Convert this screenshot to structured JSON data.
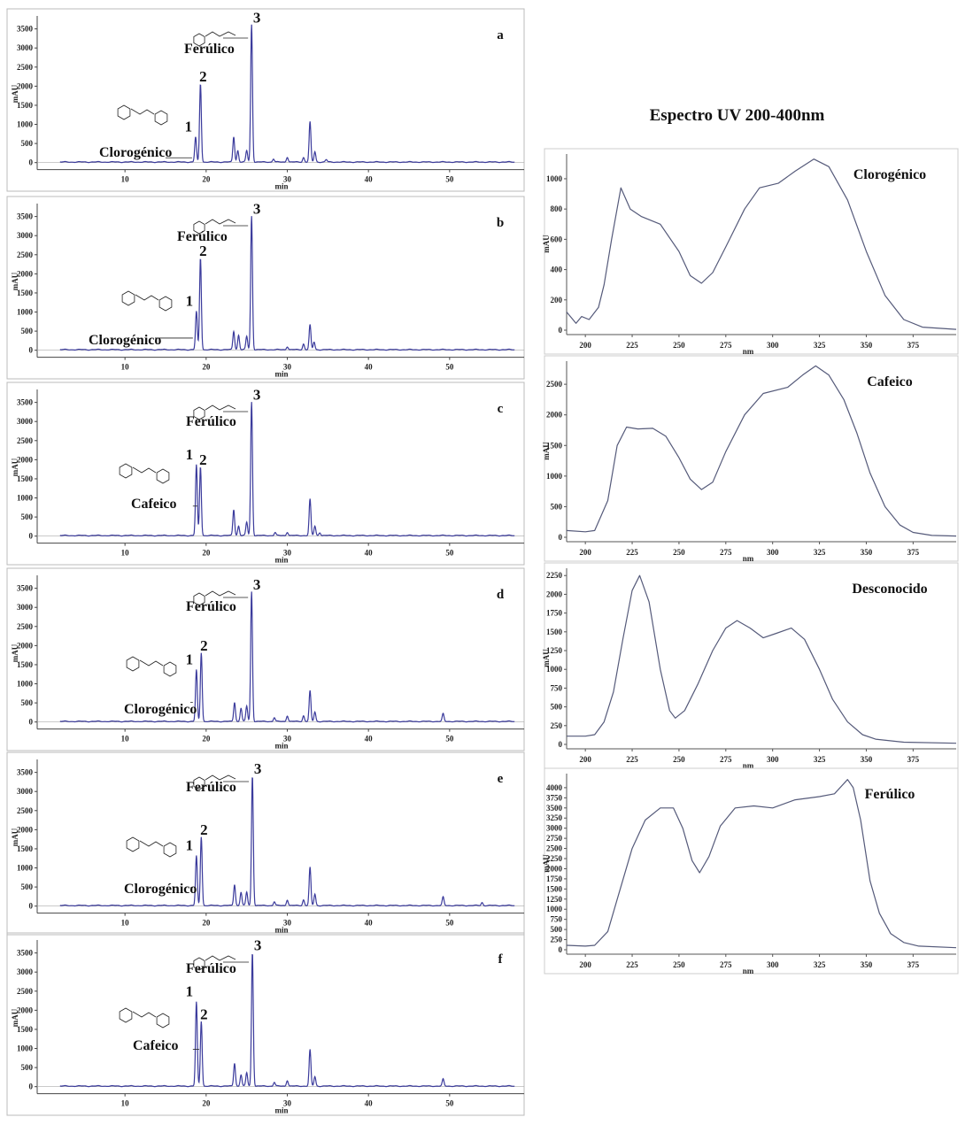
{
  "figure_title": "Espectro UV 200-400nm",
  "chart_data": [
    {
      "type": "line",
      "panel": "a",
      "xlabel": "min",
      "ylabel": "mAU",
      "xlim": [
        0,
        60
      ],
      "ylim": [
        -100,
        3700
      ],
      "x_ticks": [
        10,
        20,
        30,
        40,
        50
      ],
      "y_ticks": [
        0,
        500,
        1000,
        1500,
        2000,
        2500,
        3000,
        3500
      ],
      "line_color": "#3b3b9c",
      "annotations": {
        "compound_1": "Clorogénico",
        "compound_3": "Ferúlico",
        "peak_labels": [
          "1",
          "2",
          "3"
        ]
      },
      "peaks": [
        [
          18.7,
          650
        ],
        [
          19.3,
          2050
        ],
        [
          23.4,
          660
        ],
        [
          23.9,
          300
        ],
        [
          25.0,
          300
        ],
        [
          25.6,
          3600
        ],
        [
          28.3,
          80
        ],
        [
          30.0,
          130
        ],
        [
          32.0,
          120
        ],
        [
          32.8,
          1050
        ],
        [
          33.4,
          270
        ],
        [
          34.8,
          60
        ]
      ]
    },
    {
      "type": "line",
      "panel": "b",
      "xlabel": "min",
      "ylabel": "mAU",
      "xlim": [
        0,
        60
      ],
      "ylim": [
        -100,
        3700
      ],
      "x_ticks": [
        10,
        20,
        30,
        40,
        50
      ],
      "y_ticks": [
        0,
        500,
        1000,
        1500,
        2000,
        2500,
        3000,
        3500
      ],
      "line_color": "#3b3b9c",
      "annotations": {
        "compound_1": "Clorogénico",
        "compound_3": "Ferúlico",
        "peak_labels": [
          "1",
          "2",
          "3"
        ]
      },
      "peaks": [
        [
          18.8,
          1000
        ],
        [
          19.3,
          2400
        ],
        [
          23.4,
          480
        ],
        [
          24.0,
          380
        ],
        [
          25.0,
          350
        ],
        [
          25.6,
          3500
        ],
        [
          30.0,
          80
        ],
        [
          32.0,
          150
        ],
        [
          32.8,
          650
        ],
        [
          33.3,
          200
        ]
      ]
    },
    {
      "type": "line",
      "panel": "c",
      "xlabel": "min",
      "ylabel": "mAU",
      "xlim": [
        0,
        60
      ],
      "ylim": [
        -100,
        3700
      ],
      "x_ticks": [
        10,
        20,
        30,
        40,
        50
      ],
      "y_ticks": [
        0,
        500,
        1000,
        1500,
        2000,
        2500,
        3000,
        3500
      ],
      "line_color": "#3b3b9c",
      "annotations": {
        "compound_1": "Cafeico",
        "compound_3": "Ferúlico",
        "peak_labels": [
          "1",
          "2",
          "3"
        ]
      },
      "peaks": [
        [
          18.8,
          1850
        ],
        [
          19.3,
          1800
        ],
        [
          23.4,
          680
        ],
        [
          24.0,
          250
        ],
        [
          25.0,
          350
        ],
        [
          25.6,
          3500
        ],
        [
          28.5,
          80
        ],
        [
          30.0,
          90
        ],
        [
          32.8,
          950
        ],
        [
          33.4,
          250
        ],
        [
          34.0,
          80
        ]
      ]
    },
    {
      "type": "line",
      "panel": "d",
      "xlabel": "min",
      "ylabel": "mAU",
      "xlim": [
        0,
        60
      ],
      "ylim": [
        -100,
        3700
      ],
      "x_ticks": [
        10,
        20,
        30,
        40,
        50
      ],
      "y_ticks": [
        0,
        500,
        1000,
        1500,
        2000,
        2500,
        3000,
        3500
      ],
      "line_color": "#3b3b9c",
      "annotations": {
        "compound_1": "Clorogénico",
        "compound_3": "Ferúlico",
        "peak_labels": [
          "1",
          "2",
          "3"
        ]
      },
      "peaks": [
        [
          18.8,
          1350
        ],
        [
          19.4,
          1800
        ],
        [
          23.5,
          500
        ],
        [
          24.3,
          350
        ],
        [
          25.0,
          400
        ],
        [
          25.6,
          3400
        ],
        [
          28.4,
          100
        ],
        [
          30.0,
          150
        ],
        [
          32.0,
          150
        ],
        [
          32.8,
          800
        ],
        [
          33.4,
          250
        ],
        [
          49.2,
          200
        ]
      ]
    },
    {
      "type": "line",
      "panel": "e",
      "xlabel": "min",
      "ylabel": "mAU",
      "xlim": [
        0,
        60
      ],
      "ylim": [
        -100,
        3700
      ],
      "x_ticks": [
        10,
        20,
        30,
        40,
        50
      ],
      "y_ticks": [
        0,
        500,
        1000,
        1500,
        2000,
        2500,
        3000,
        3500
      ],
      "line_color": "#3b3b9c",
      "annotations": {
        "compound_1": "Clorogénico",
        "compound_3": "Ferúlico",
        "peak_labels": [
          "1",
          "2",
          "3"
        ]
      },
      "peaks": [
        [
          18.8,
          1300
        ],
        [
          19.4,
          1800
        ],
        [
          23.5,
          550
        ],
        [
          24.3,
          350
        ],
        [
          25.0,
          350
        ],
        [
          25.7,
          3400
        ],
        [
          28.4,
          100
        ],
        [
          30.0,
          150
        ],
        [
          32.0,
          150
        ],
        [
          32.8,
          1000
        ],
        [
          33.4,
          300
        ],
        [
          49.2,
          220
        ],
        [
          54.0,
          80
        ]
      ]
    },
    {
      "type": "line",
      "panel": "f",
      "xlabel": "min",
      "ylabel": "mAU",
      "xlim": [
        0,
        60
      ],
      "ylim": [
        -100,
        3700
      ],
      "x_ticks": [
        10,
        20,
        30,
        40,
        50
      ],
      "y_ticks": [
        0,
        500,
        1000,
        1500,
        2000,
        2500,
        3000,
        3500
      ],
      "line_color": "#3b3b9c",
      "annotations": {
        "compound_1": "Cafeico",
        "compound_3": "Ferúlico",
        "peak_labels": [
          "1",
          "2",
          "3"
        ]
      },
      "peaks": [
        [
          18.8,
          2200
        ],
        [
          19.4,
          1700
        ],
        [
          23.5,
          600
        ],
        [
          24.3,
          300
        ],
        [
          25.0,
          350
        ],
        [
          25.7,
          3500
        ],
        [
          28.4,
          100
        ],
        [
          30.0,
          150
        ],
        [
          32.8,
          950
        ],
        [
          33.4,
          250
        ],
        [
          49.2,
          180
        ]
      ]
    },
    {
      "type": "line",
      "label": "Clorogénico",
      "xlabel": "nm",
      "ylabel": "mAU",
      "xlim": [
        190,
        398
      ],
      "ylim": [
        0,
        1140
      ],
      "x_ticks": [
        200,
        225,
        250,
        275,
        300,
        325,
        350,
        375
      ],
      "y_ticks": [
        0,
        200,
        400,
        600,
        800,
        1000
      ],
      "points": [
        [
          190,
          120
        ],
        [
          195,
          45
        ],
        [
          198,
          90
        ],
        [
          202,
          70
        ],
        [
          207,
          150
        ],
        [
          210,
          300
        ],
        [
          214,
          600
        ],
        [
          219,
          940
        ],
        [
          224,
          800
        ],
        [
          230,
          750
        ],
        [
          240,
          700
        ],
        [
          250,
          520
        ],
        [
          256,
          360
        ],
        [
          262,
          310
        ],
        [
          268,
          380
        ],
        [
          275,
          550
        ],
        [
          285,
          800
        ],
        [
          293,
          940
        ],
        [
          303,
          970
        ],
        [
          312,
          1050
        ],
        [
          322,
          1130
        ],
        [
          330,
          1080
        ],
        [
          340,
          860
        ],
        [
          350,
          520
        ],
        [
          360,
          230
        ],
        [
          370,
          70
        ],
        [
          380,
          20
        ],
        [
          398,
          5
        ]
      ]
    },
    {
      "type": "line",
      "label": "Cafeico",
      "xlabel": "nm",
      "ylabel": "mAU",
      "xlim": [
        190,
        398
      ],
      "ylim": [
        0,
        2820
      ],
      "x_ticks": [
        200,
        225,
        250,
        275,
        300,
        325,
        350,
        375
      ],
      "y_ticks": [
        0,
        500,
        1000,
        1500,
        2000,
        2500
      ],
      "points": [
        [
          190,
          110
        ],
        [
          200,
          90
        ],
        [
          205,
          110
        ],
        [
          212,
          600
        ],
        [
          217,
          1500
        ],
        [
          222,
          1800
        ],
        [
          228,
          1770
        ],
        [
          236,
          1780
        ],
        [
          243,
          1650
        ],
        [
          250,
          1300
        ],
        [
          256,
          950
        ],
        [
          262,
          780
        ],
        [
          268,
          900
        ],
        [
          275,
          1400
        ],
        [
          285,
          2000
        ],
        [
          295,
          2350
        ],
        [
          308,
          2450
        ],
        [
          316,
          2650
        ],
        [
          323,
          2800
        ],
        [
          330,
          2650
        ],
        [
          338,
          2250
        ],
        [
          345,
          1700
        ],
        [
          352,
          1050
        ],
        [
          360,
          500
        ],
        [
          368,
          200
        ],
        [
          375,
          80
        ],
        [
          385,
          30
        ],
        [
          398,
          20
        ]
      ]
    },
    {
      "type": "line",
      "label": "Desconocido",
      "xlabel": "nm",
      "ylabel": "mAU",
      "xlim": [
        190,
        398
      ],
      "ylim": [
        0,
        2300
      ],
      "x_ticks": [
        200,
        225,
        250,
        275,
        300,
        325,
        350,
        375
      ],
      "y_ticks": [
        0,
        250,
        500,
        750,
        1000,
        1250,
        1500,
        1750,
        2000,
        2250
      ],
      "points": [
        [
          190,
          110
        ],
        [
          200,
          110
        ],
        [
          205,
          130
        ],
        [
          210,
          300
        ],
        [
          215,
          700
        ],
        [
          220,
          1400
        ],
        [
          225,
          2050
        ],
        [
          229,
          2250
        ],
        [
          234,
          1900
        ],
        [
          240,
          1000
        ],
        [
          245,
          450
        ],
        [
          248,
          350
        ],
        [
          253,
          450
        ],
        [
          260,
          800
        ],
        [
          268,
          1250
        ],
        [
          275,
          1550
        ],
        [
          281,
          1650
        ],
        [
          288,
          1550
        ],
        [
          295,
          1420
        ],
        [
          302,
          1480
        ],
        [
          310,
          1550
        ],
        [
          317,
          1400
        ],
        [
          325,
          1000
        ],
        [
          332,
          600
        ],
        [
          340,
          300
        ],
        [
          348,
          130
        ],
        [
          355,
          70
        ],
        [
          370,
          30
        ],
        [
          398,
          15
        ]
      ]
    },
    {
      "type": "line",
      "label": "Ferúlico",
      "xlabel": "nm",
      "ylabel": "mAU",
      "xlim": [
        190,
        398
      ],
      "ylim": [
        0,
        4260
      ],
      "x_ticks": [
        200,
        225,
        250,
        275,
        300,
        325,
        350,
        375
      ],
      "y_ticks": [
        0,
        250,
        500,
        750,
        1000,
        1250,
        1500,
        1750,
        2000,
        2250,
        2500,
        2750,
        3000,
        3250,
        3500,
        3750,
        4000
      ],
      "points": [
        [
          190,
          110
        ],
        [
          200,
          90
        ],
        [
          205,
          110
        ],
        [
          212,
          450
        ],
        [
          218,
          1400
        ],
        [
          225,
          2500
        ],
        [
          232,
          3200
        ],
        [
          240,
          3500
        ],
        [
          247,
          3500
        ],
        [
          252,
          3000
        ],
        [
          257,
          2200
        ],
        [
          261,
          1900
        ],
        [
          266,
          2300
        ],
        [
          272,
          3050
        ],
        [
          280,
          3500
        ],
        [
          290,
          3550
        ],
        [
          300,
          3500
        ],
        [
          312,
          3700
        ],
        [
          325,
          3780
        ],
        [
          333,
          3850
        ],
        [
          340,
          4200
        ],
        [
          343,
          4000
        ],
        [
          347,
          3200
        ],
        [
          352,
          1700
        ],
        [
          357,
          900
        ],
        [
          363,
          400
        ],
        [
          370,
          180
        ],
        [
          378,
          90
        ],
        [
          398,
          50
        ]
      ]
    }
  ]
}
